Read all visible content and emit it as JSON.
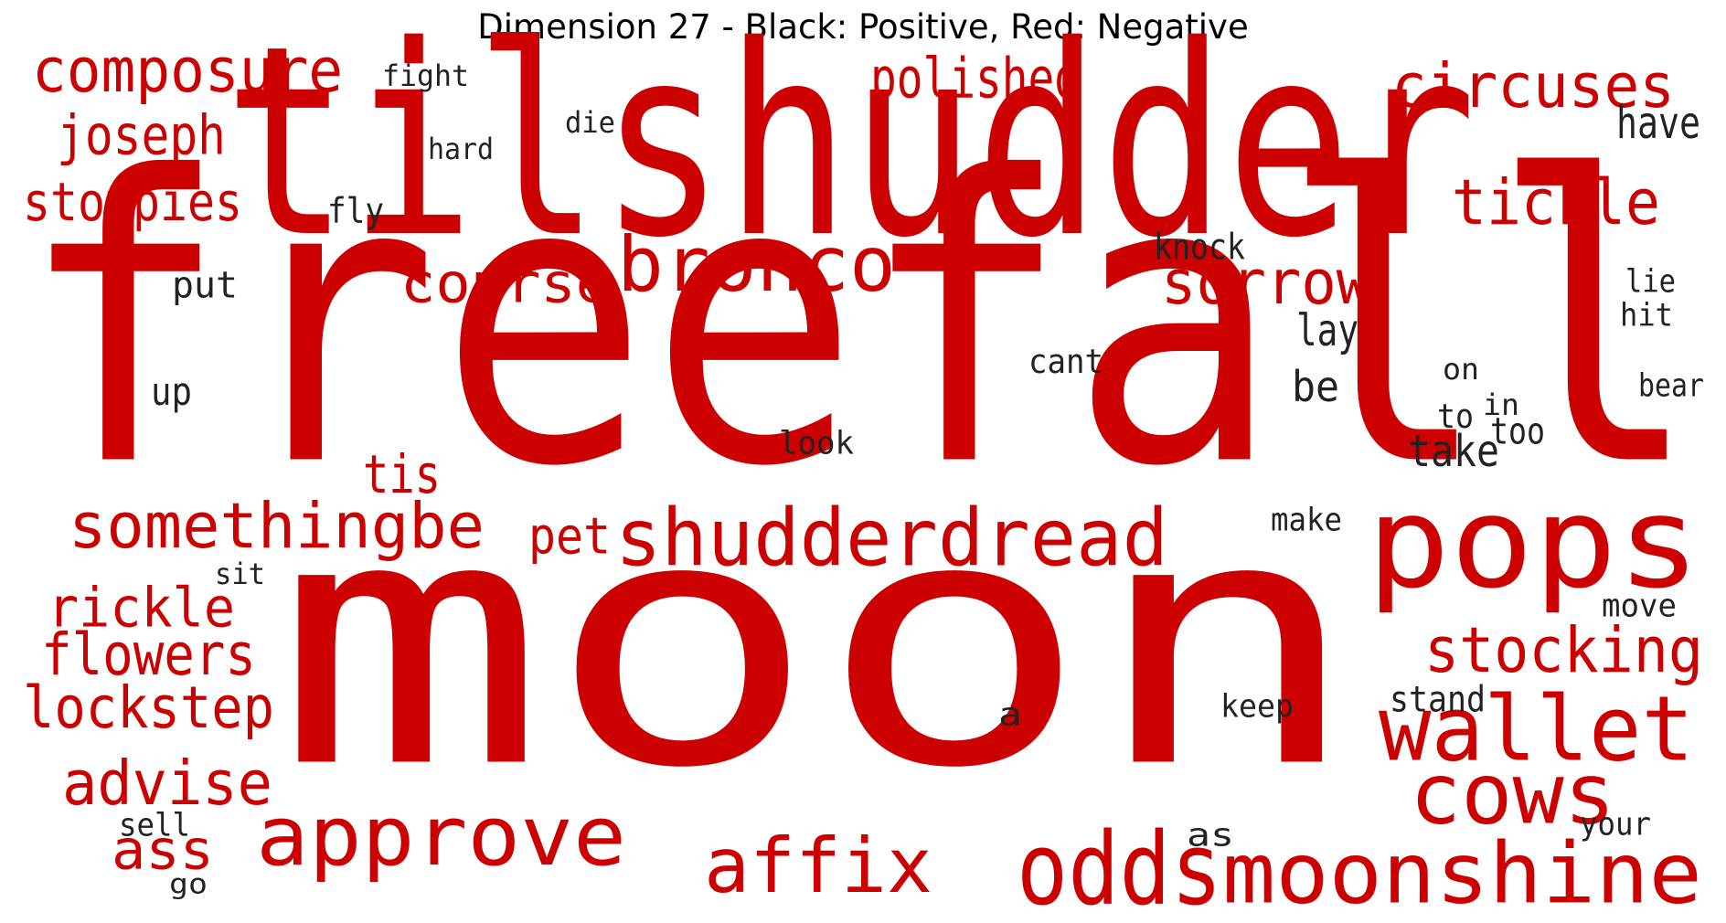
{
  "title": "Dimension 27 - Black: Positive, Red: Negative",
  "colors": {
    "positive": "#222222",
    "negative": "#cc0000",
    "background": "#ffffff"
  },
  "words": [
    {
      "text": "moon",
      "polarity": "negative"
    },
    {
      "text": "freefall",
      "polarity": "negative"
    },
    {
      "text": "tilshudder",
      "polarity": "negative"
    },
    {
      "text": "pops",
      "polarity": "negative"
    },
    {
      "text": "approve",
      "polarity": "negative"
    },
    {
      "text": "wallet",
      "polarity": "negative"
    },
    {
      "text": "cows",
      "polarity": "negative"
    },
    {
      "text": "odds",
      "polarity": "negative"
    },
    {
      "text": "moonshine",
      "polarity": "negative"
    },
    {
      "text": "affix",
      "polarity": "negative"
    },
    {
      "text": "bronco",
      "polarity": "negative"
    },
    {
      "text": "shudderdread",
      "polarity": "negative"
    },
    {
      "text": "somethingbe",
      "polarity": "negative"
    },
    {
      "text": "composure",
      "polarity": "negative"
    },
    {
      "text": "circuses",
      "polarity": "negative"
    },
    {
      "text": "tickle",
      "polarity": "negative"
    },
    {
      "text": "sorrow",
      "polarity": "negative"
    },
    {
      "text": "course",
      "polarity": "negative"
    },
    {
      "text": "polished",
      "polarity": "negative"
    },
    {
      "text": "stocking",
      "polarity": "negative"
    },
    {
      "text": "advise",
      "polarity": "negative"
    },
    {
      "text": "lockstep",
      "polarity": "negative"
    },
    {
      "text": "flowers",
      "polarity": "negative"
    },
    {
      "text": "rickle",
      "polarity": "negative"
    },
    {
      "text": "ass",
      "polarity": "negative"
    },
    {
      "text": "joseph",
      "polarity": "negative"
    },
    {
      "text": "stompies",
      "polarity": "negative"
    },
    {
      "text": "tis",
      "polarity": "negative"
    },
    {
      "text": "pet",
      "polarity": "negative"
    },
    {
      "text": "fight",
      "polarity": "positive"
    },
    {
      "text": "die",
      "polarity": "positive"
    },
    {
      "text": "hard",
      "polarity": "positive"
    },
    {
      "text": "fly",
      "polarity": "positive"
    },
    {
      "text": "have",
      "polarity": "positive"
    },
    {
      "text": "knock",
      "polarity": "positive"
    },
    {
      "text": "put",
      "polarity": "positive"
    },
    {
      "text": "lie",
      "polarity": "positive"
    },
    {
      "text": "hit",
      "polarity": "positive"
    },
    {
      "text": "lay",
      "polarity": "positive"
    },
    {
      "text": "cant",
      "polarity": "positive"
    },
    {
      "text": "on",
      "polarity": "positive"
    },
    {
      "text": "up",
      "polarity": "positive"
    },
    {
      "text": "be",
      "polarity": "positive"
    },
    {
      "text": "in",
      "polarity": "positive"
    },
    {
      "text": "bear",
      "polarity": "positive"
    },
    {
      "text": "to",
      "polarity": "positive"
    },
    {
      "text": "too",
      "polarity": "positive"
    },
    {
      "text": "look",
      "polarity": "positive"
    },
    {
      "text": "take",
      "polarity": "positive"
    },
    {
      "text": "make",
      "polarity": "positive"
    },
    {
      "text": "sit",
      "polarity": "positive"
    },
    {
      "text": "move",
      "polarity": "positive"
    },
    {
      "text": "stand",
      "polarity": "positive"
    },
    {
      "text": "keep",
      "polarity": "positive"
    },
    {
      "text": "a",
      "polarity": "positive"
    },
    {
      "text": "sell",
      "polarity": "positive"
    },
    {
      "text": "as",
      "polarity": "positive"
    },
    {
      "text": "your",
      "polarity": "positive"
    },
    {
      "text": "go",
      "polarity": "positive"
    }
  ]
}
